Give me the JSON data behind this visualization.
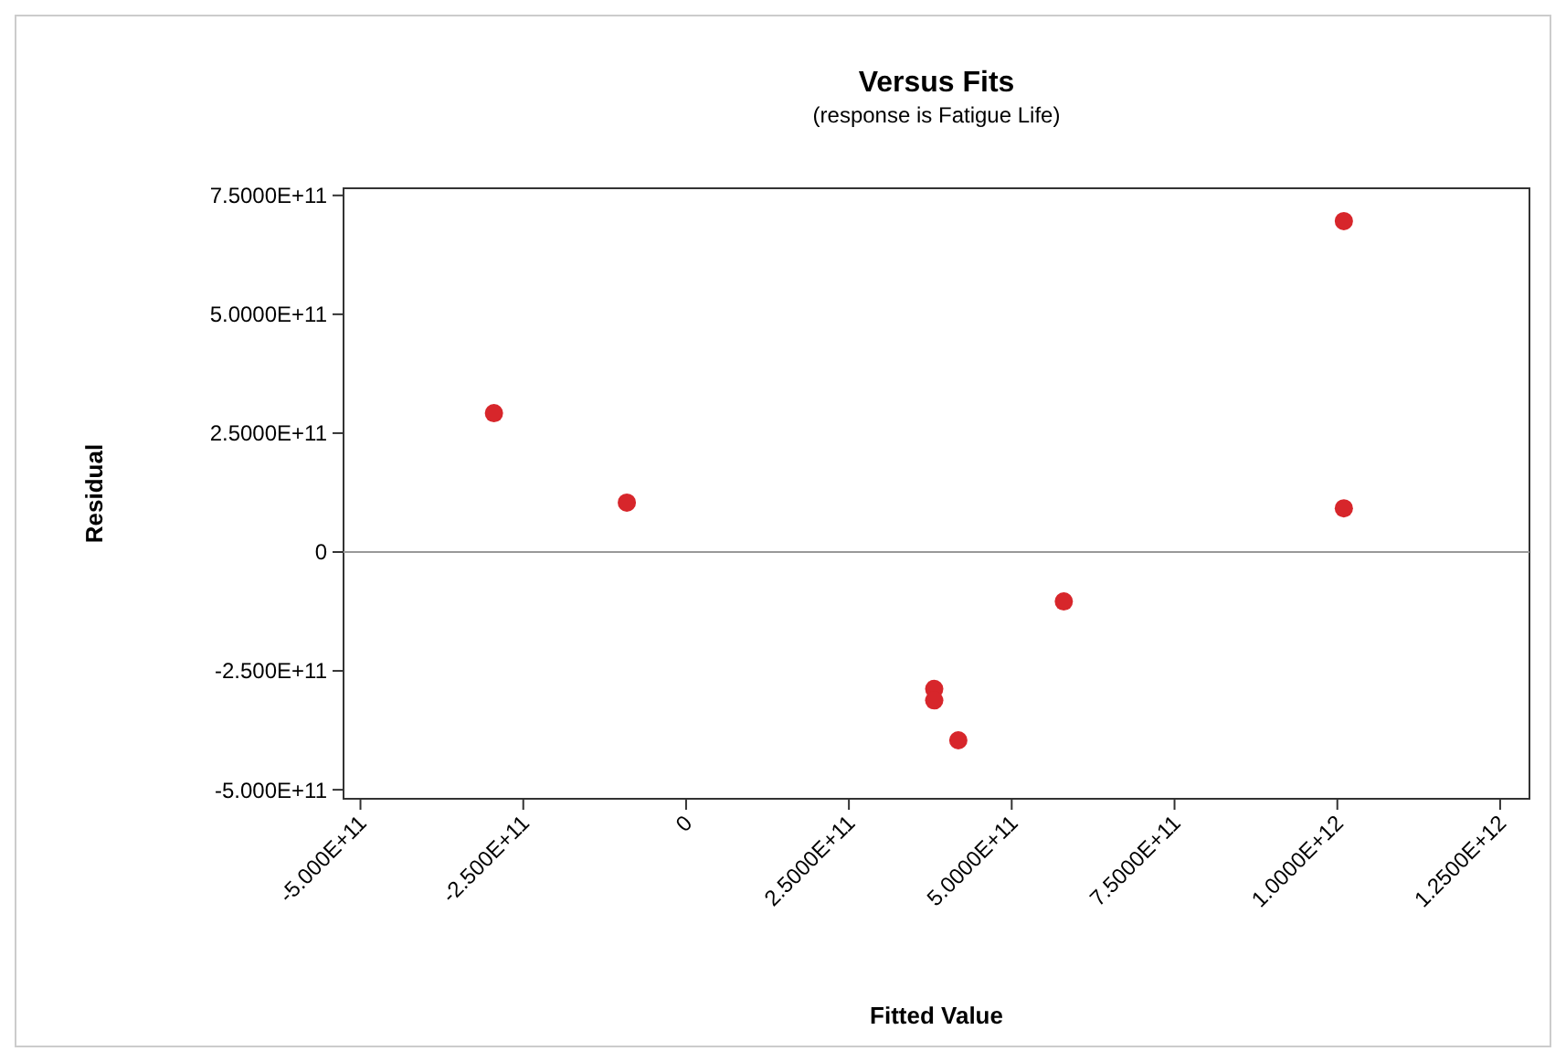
{
  "chart_data": {
    "type": "scatter",
    "title": "Versus Fits",
    "subtitle": "(response is Fatigue Life)",
    "xlabel": "Fitted Value",
    "ylabel": "Residual",
    "x": [
      -295000000000,
      -91000000000,
      381000000000,
      381000000000,
      418000000000,
      580000000000,
      1010000000000,
      1010000000000
    ],
    "series": [
      {
        "color": "#d7262b",
        "values": [
          292000000000,
          104000000000,
          -288000000000,
          -312000000000,
          -396000000000,
          -104000000000,
          696000000000,
          92000000000
        ]
      }
    ],
    "marker": "circle",
    "grid": false,
    "xlim": [
      -526000000000,
      1295000000000
    ],
    "ylim": [
      -519000000000,
      765000000000
    ],
    "xticks": [
      {
        "value": -500000000000,
        "label": "-5.000E+11"
      },
      {
        "value": -250000000000,
        "label": "-2.500E+11"
      },
      0,
      {
        "value": 250000000000,
        "label": "2.5000E+11"
      },
      {
        "value": 500000000000,
        "label": "5.0000E+11"
      },
      {
        "value": 750000000000,
        "label": "7.5000E+11"
      },
      {
        "value": 1000000000000,
        "label": "1.0000E+12"
      },
      {
        "value": 1250000000000,
        "label": "1.2500E+12"
      }
    ],
    "yticks": [
      {
        "value": -500000000000,
        "label": "-5.000E+11"
      },
      {
        "value": -250000000000,
        "label": "-2.500E+11"
      },
      0,
      {
        "value": 250000000000,
        "label": "2.5000E+11"
      },
      {
        "value": 500000000000,
        "label": "5.0000E+11"
      },
      {
        "value": 750000000000,
        "label": "7.5000E+11"
      }
    ],
    "ref_lines": [
      {
        "axis": "y",
        "value": 0,
        "color": "#999999"
      }
    ]
  }
}
